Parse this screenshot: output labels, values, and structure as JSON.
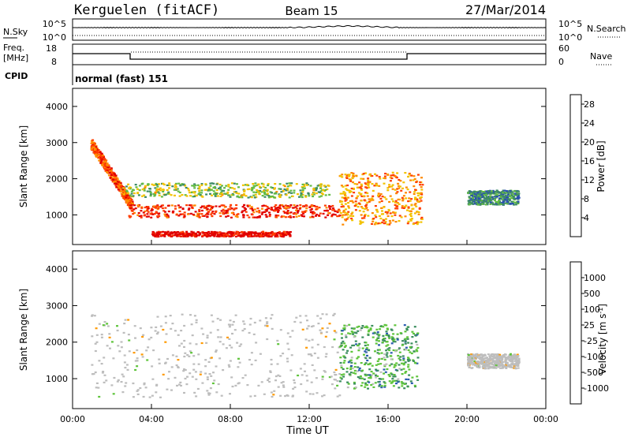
{
  "header": {
    "station": "Kerguelen (fitACF)",
    "beam": "Beam 15",
    "date": "27/Mar/2014"
  },
  "top_panels": {
    "nsky_label": "N.Sky",
    "nsky_ticks": [
      "10^5",
      "10^0"
    ],
    "nsearch_label": "N.Search",
    "nsearch_ticks": [
      "10^5",
      "10^0"
    ],
    "freq_label": "Freq.",
    "freq_unit": "[MHz]",
    "freq_ticks": [
      "18",
      "8"
    ],
    "nave_label": "Nave",
    "nave_ticks": [
      "60",
      "0"
    ],
    "cpid_label": "CPID",
    "cpid_value": "normal (fast) 151"
  },
  "colors": {
    "power_scale": [
      "#0000ff",
      "#2a50b0",
      "#3d8a66",
      "#63bb44",
      "#f2c200",
      "#ff8a00",
      "#ff3c00",
      "#e00000"
    ],
    "velocity_scale": [
      "#0000b4",
      "#2b5cb0",
      "#3b8e5e",
      "#5ec43a",
      "#c0c0c0",
      "#c0c0c0",
      "#ff9a00",
      "#ff6000",
      "#e00000"
    ],
    "ground_scatter": "#bdbdbd"
  },
  "chart_data": [
    {
      "type": "heatmap",
      "panel": "power",
      "x_unit": "hours UT",
      "xlim": [
        0,
        24
      ],
      "ylim": [
        180,
        4500
      ],
      "ylabel": "Slant Range [km]",
      "yticks": [
        "1000",
        "2000",
        "3000",
        "4000"
      ],
      "colorbar": {
        "label": "Power [dB]",
        "ticks": [
          "4",
          "8",
          "12",
          "16",
          "20",
          "24",
          "28"
        ],
        "range": [
          0,
          30
        ]
      },
      "regions": [
        {
          "name": "morning descending echo",
          "x": [
            0.9,
            3.0
          ],
          "range_km": [
            3000,
            1250
          ],
          "value_db": 24
        },
        {
          "name": "main band",
          "x": [
            2.8,
            13.5
          ],
          "range_km": [
            950,
            1300
          ],
          "value_db": 26
        },
        {
          "name": "upper band",
          "x": [
            2.5,
            13.0
          ],
          "range_km": [
            1500,
            1900
          ],
          "value_db": 14
        },
        {
          "name": "lower band",
          "x": [
            4.0,
            11.0
          ],
          "range_km": [
            420,
            560
          ],
          "value_db": 28
        },
        {
          "name": "afternoon echo",
          "x": [
            13.5,
            17.7
          ],
          "range_km": [
            750,
            2200
          ],
          "value_db": 20
        },
        {
          "name": "evening patch",
          "x": [
            20.0,
            22.6
          ],
          "range_km": [
            1300,
            1700
          ],
          "value_db": 9
        }
      ]
    },
    {
      "type": "heatmap",
      "panel": "velocity",
      "x_unit": "hours UT",
      "xlim": [
        0,
        24
      ],
      "ylim": [
        180,
        4500
      ],
      "ylabel": "Slant Range [km]",
      "yticks": [
        "1000",
        "2000",
        "3000",
        "4000"
      ],
      "xticks": [
        "00:00",
        "04:00",
        "08:00",
        "12:00",
        "16:00",
        "20:00",
        "00:00"
      ],
      "xlabel": "Time UT",
      "colorbar": {
        "label": "Velocity [m s",
        "label_sup": "-1",
        "label_end": "]",
        "ticks": [
          "1000",
          "500",
          "100",
          "25",
          "-25",
          "-100",
          "-500",
          "-1000"
        ]
      },
      "regions": [
        {
          "name": "ground scatter bands",
          "x": [
            0.9,
            13.5
          ],
          "range_km": [
            500,
            2800
          ],
          "value": "ground"
        },
        {
          "name": "afternoon flow",
          "x": [
            13.5,
            17.5
          ],
          "range_km": [
            750,
            2500
          ],
          "value_ms": 200
        },
        {
          "name": "evening patch",
          "x": [
            20.0,
            22.6
          ],
          "range_km": [
            1300,
            1700
          ],
          "value": "ground"
        }
      ]
    }
  ]
}
